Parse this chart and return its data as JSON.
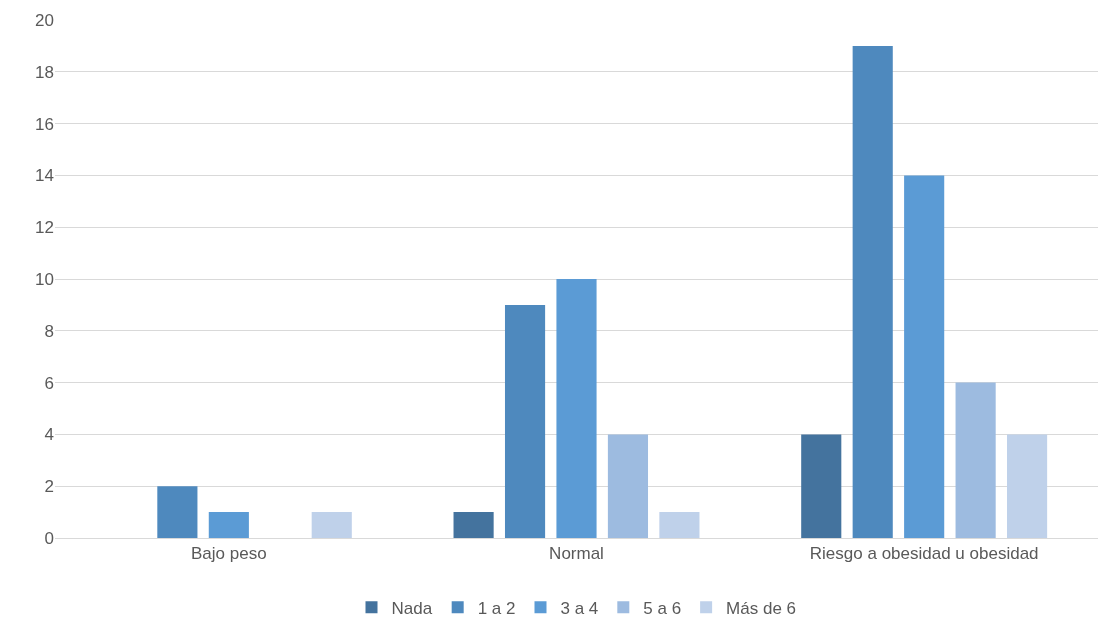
{
  "chart_data": {
    "type": "bar",
    "categories": [
      "Bajo peso",
      "Normal",
      "Riesgo a obesidad u obesidad"
    ],
    "series": [
      {
        "name": "Nada",
        "color": "#44739e",
        "values": [
          0,
          1,
          4
        ]
      },
      {
        "name": "1 a 2",
        "color": "#4e89be",
        "values": [
          2,
          9,
          19
        ]
      },
      {
        "name": "3 a 4",
        "color": "#5b9bd5",
        "values": [
          1,
          10,
          14
        ]
      },
      {
        "name": "5 a 6",
        "color": "#9dbbe0",
        "values": [
          0,
          4,
          6
        ]
      },
      {
        "name": "Más de 6",
        "color": "#bfd1ea",
        "values": [
          1,
          1,
          4
        ]
      }
    ],
    "ylim": [
      0,
      20
    ],
    "yticks": [
      0,
      2,
      4,
      6,
      8,
      10,
      12,
      14,
      16,
      18,
      20
    ],
    "grid": "y",
    "legend": "bottom"
  }
}
